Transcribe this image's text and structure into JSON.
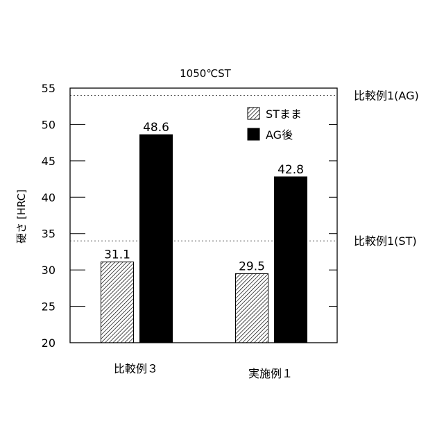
{
  "chart_data": {
    "type": "bar",
    "title": "1050℃ST",
    "ylabel": "硬さ [HRC]",
    "xlabel": "",
    "ylim": [
      20,
      55
    ],
    "yticks": [
      20,
      25,
      30,
      35,
      40,
      45,
      50,
      55
    ],
    "categories": [
      "比較例３",
      "実施例１"
    ],
    "series": [
      {
        "name": "STまま",
        "values": [
          31.1,
          29.5
        ],
        "labels": [
          "31.1",
          "29.5"
        ],
        "fill": "hatch",
        "color": "#ffffff"
      },
      {
        "name": "AG後",
        "values": [
          48.6,
          42.8
        ],
        "labels": [
          "48.6",
          "42.8"
        ],
        "fill": "solid",
        "color": "#000000"
      }
    ],
    "reference_lines": [
      {
        "value": 54,
        "label": "比較例1(AG)"
      },
      {
        "value": 34,
        "label": "比較例1(ST)"
      }
    ],
    "legend_position": "top-right",
    "grid": false
  }
}
